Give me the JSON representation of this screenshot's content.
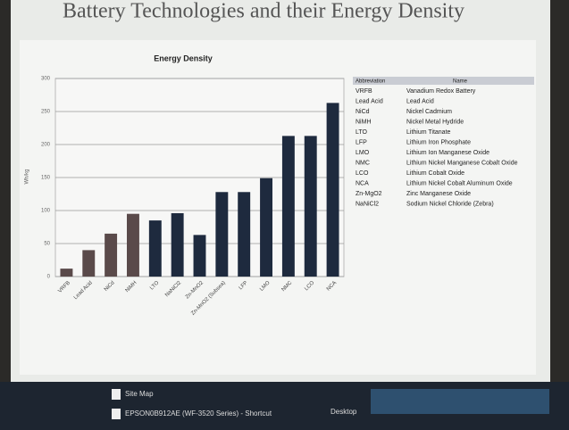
{
  "slide_title": "Battery Technologies and their Energy Density",
  "chart_data": {
    "type": "bar",
    "title": "Energy Density",
    "y_label": "Wh/kg",
    "categories": [
      "VRFB",
      "Lead Acid",
      "NiCd",
      "NiMH",
      "LTO",
      "NaNiCl2",
      "Zn-MnO2",
      "Zn-MnO2 (Subsea)",
      "LFP",
      "LMO",
      "NMC",
      "LCO",
      "NCA"
    ],
    "values": [
      12,
      40,
      65,
      95,
      85,
      96,
      63,
      128,
      128,
      149,
      213,
      213,
      263
    ],
    "colors": [
      "#5a4a4a",
      "#5a4a4a",
      "#5a4a4a",
      "#5a4a4a",
      "#1e2a3e",
      "#1e2a3e",
      "#1e2a3e",
      "#1e2a3e",
      "#1e2a3e",
      "#1e2a3e",
      "#1e2a3e",
      "#1e2a3e",
      "#1e2a3e"
    ],
    "ylim": [
      0,
      300
    ],
    "yticks": [
      0,
      50,
      100,
      150,
      200,
      250,
      300
    ],
    "grid": true
  },
  "table": {
    "columns": [
      "Abbreviation",
      "Name"
    ],
    "rows": [
      [
        "VRFB",
        "Vanadium Redox Battery"
      ],
      [
        "Lead Acid",
        "Lead Acid"
      ],
      [
        "NiCd",
        "Nickel Cadmium"
      ],
      [
        "NiMH",
        "Nickel Metal Hydride"
      ],
      [
        "LTO",
        "Lithium Titanate"
      ],
      [
        "LFP",
        "Lithium Iron Phosphate"
      ],
      [
        "LMO",
        "Lithium Ion Manganese Oxide"
      ],
      [
        "NMC",
        "Lithium Nickel Manganese Cobalt Oxide"
      ],
      [
        "LCO",
        "Lithium Cobalt Oxide"
      ],
      [
        "NCA",
        "Lithium Nickel Cobalt Aluminum Oxide"
      ],
      [
        "Zn-MgO2",
        "Zinc Manganese Oxide"
      ],
      [
        "NaNiCl2",
        "Sodium Nickel Chloride (Zebra)"
      ]
    ]
  },
  "taskbar": {
    "items": [
      "Site Map",
      "EPSON0B912AE (WF-3520 Series) - Shortcut",
      "Desktop"
    ]
  }
}
